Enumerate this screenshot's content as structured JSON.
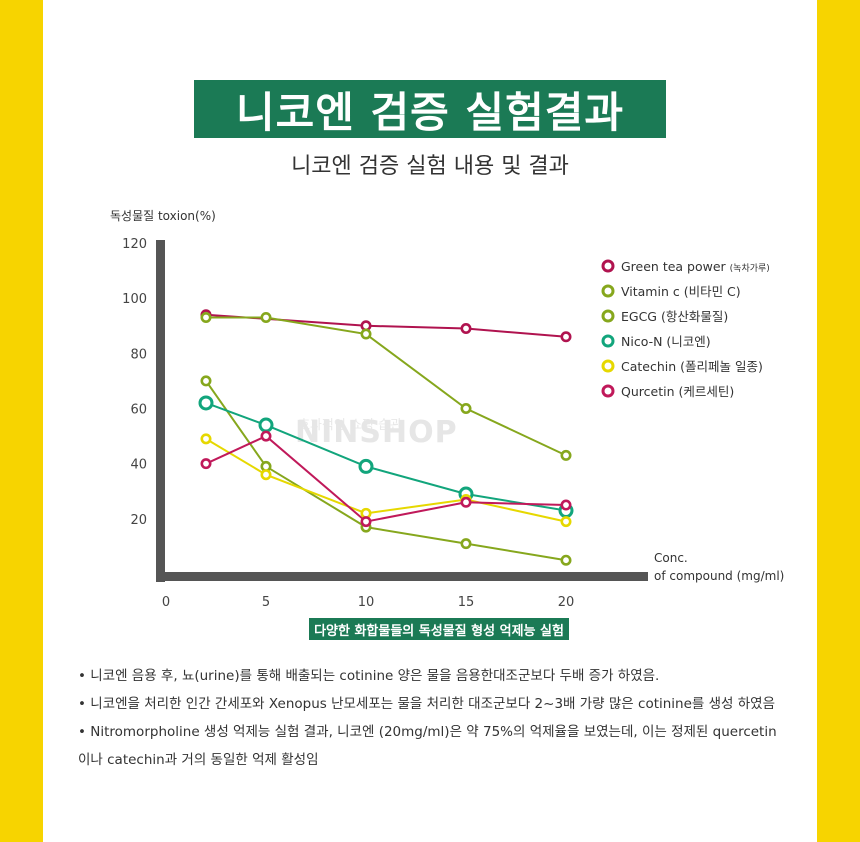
{
  "header": {
    "title": "니코엔 검증 실험결과",
    "subtitle": "니코엔 검증 실험 내용 및 결과"
  },
  "watermark": {
    "line1": "효과적인 쇼핑 습관",
    "line2": "NINSHOP"
  },
  "chart_data": {
    "type": "line",
    "ylabel": "독성물질 toxion(%)",
    "xlabel_line1": "Conc.",
    "xlabel_line2": "of compound (mg/ml)",
    "ylim": [
      0,
      120
    ],
    "xlim": [
      0,
      20
    ],
    "yticks": [
      "120",
      "100",
      "80",
      "60",
      "40",
      "20"
    ],
    "ytick_values": [
      120,
      100,
      80,
      60,
      40,
      20
    ],
    "xticks": [
      "0",
      "5",
      "10",
      "15",
      "20"
    ],
    "xtick_values": [
      0,
      5,
      10,
      15,
      20
    ],
    "legend_position": "top-right",
    "series": [
      {
        "name": "Green tea power",
        "name_ko": "(녹차가루)",
        "color": "#b0134f",
        "x": [
          2,
          10,
          15,
          20
        ],
        "y": [
          94,
          90,
          89,
          86
        ]
      },
      {
        "name": "Vitamin c",
        "name_ko": "(비타민 C)",
        "color": "#86a71d",
        "x": [
          2,
          5,
          10,
          15,
          20
        ],
        "y": [
          93,
          93,
          87,
          60,
          43
        ]
      },
      {
        "name": "EGCG",
        "name_ko": "(항산화물질)",
        "color": "#86a71d",
        "x": [
          2,
          5,
          10,
          15,
          20
        ],
        "y": [
          70,
          39,
          17,
          11,
          5
        ]
      },
      {
        "name": "Nico-N",
        "name_ko": "(니코엔)",
        "color": "#12a57c",
        "x": [
          2,
          5,
          10,
          15,
          20
        ],
        "y": [
          62,
          54,
          39,
          29,
          23
        ]
      },
      {
        "name": "Catechin",
        "name_ko": "(폴리페놀 일종)",
        "color": "#e6d800",
        "x": [
          2,
          5,
          10,
          15,
          20
        ],
        "y": [
          49,
          36,
          22,
          27,
          19
        ]
      },
      {
        "name": "Qurcetin",
        "name_ko": "(케르세틴)",
        "color": "#c0195a",
        "x": [
          2,
          5,
          10,
          15,
          20
        ],
        "y": [
          40,
          50,
          19,
          26,
          25
        ]
      }
    ],
    "caption": "다양한 화합물들의 독성물질 형성 억제능 실험"
  },
  "notes": [
    "• 니코엔 음용 후, 뇨(urine)를 통해 배출되는 cotinine 양은 물을 음용한대조군보다 두배 증가 하였음.",
    "• 니코엔을 처리한 인간 간세포와 Xenopus 난모세포는 물을 처리한 대조군보다 2~3배 가량 많은 cotinine를 생성 하였음",
    "• Nitromorpholine 생성 억제능 실험 결과, 니코엔 (20mg/ml)은 약 75%의 억제율을 보였는데, 이는 정제된 quercetin",
    "이나  catechin과 거의 동일한 억제 활성임"
  ]
}
